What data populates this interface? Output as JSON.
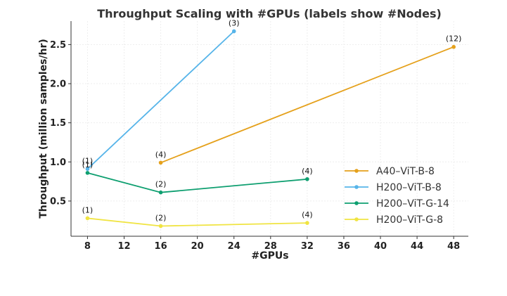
{
  "chart_data": {
    "type": "line",
    "title": "Throughput Scaling with #GPUs (labels show #Nodes)",
    "xlabel": "#GPUs",
    "ylabel": "Throughput (million samples/hr)",
    "xlim": [
      6.2,
      49.6
    ],
    "ylim": [
      0.05,
      2.8
    ],
    "xticks": [
      8,
      12,
      16,
      20,
      24,
      28,
      32,
      36,
      40,
      44,
      48
    ],
    "yticks": [
      0.5,
      1.0,
      1.5,
      2.0,
      2.5
    ],
    "grid": true,
    "legend_position": "lower-right",
    "series": [
      {
        "name": "A40–ViT-B-8",
        "color": "#E5A11C",
        "x": [
          16,
          48
        ],
        "y": [
          0.99,
          2.47
        ],
        "labels": [
          "(4)",
          "(12)"
        ]
      },
      {
        "name": "H200–ViT-B-8",
        "color": "#56B4E9",
        "x": [
          8,
          24
        ],
        "y": [
          0.91,
          2.67
        ],
        "labels": [
          "(1)",
          "(3)"
        ]
      },
      {
        "name": "H200–ViT-G-14",
        "color": "#0E9F70",
        "x": [
          8,
          16,
          32
        ],
        "y": [
          0.86,
          0.61,
          0.78
        ],
        "labels": [
          "(1)",
          "(2)",
          "(4)"
        ]
      },
      {
        "name": "H200–ViT-G-8",
        "color": "#F0E442",
        "x": [
          8,
          16,
          32
        ],
        "y": [
          0.28,
          0.18,
          0.22
        ],
        "labels": [
          "(1)",
          "(2)",
          "(4)"
        ]
      }
    ]
  }
}
